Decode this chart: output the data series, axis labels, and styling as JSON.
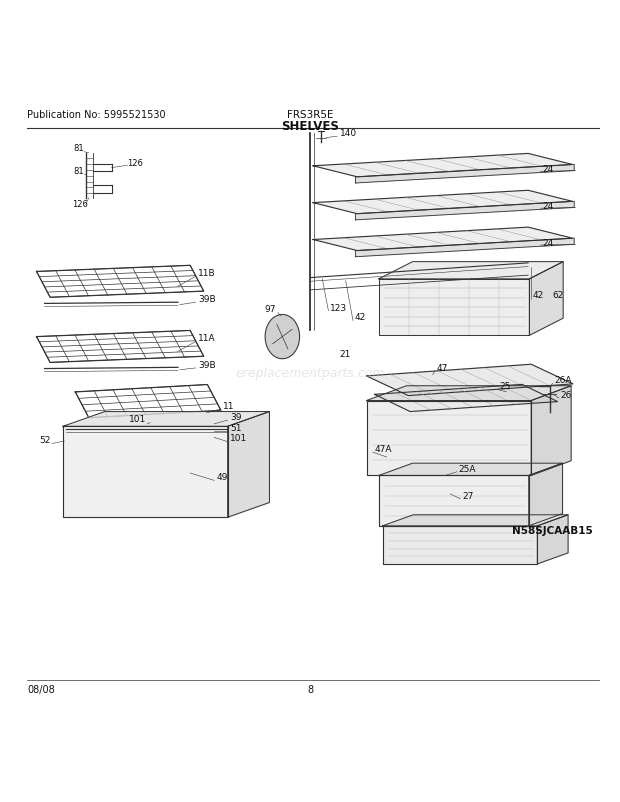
{
  "title": "SHELVES",
  "pub_no": "Publication No: 5995521530",
  "model": "FRS3R5E",
  "page": "8",
  "date": "08/08",
  "watermark": "ereplacementparts.com",
  "catalog_no": "N58SJCAAB15",
  "bg_color": "#ffffff",
  "line_color": "#333333",
  "text_color": "#111111",
  "figsize": [
    6.2,
    8.03
  ],
  "dpi": 100
}
